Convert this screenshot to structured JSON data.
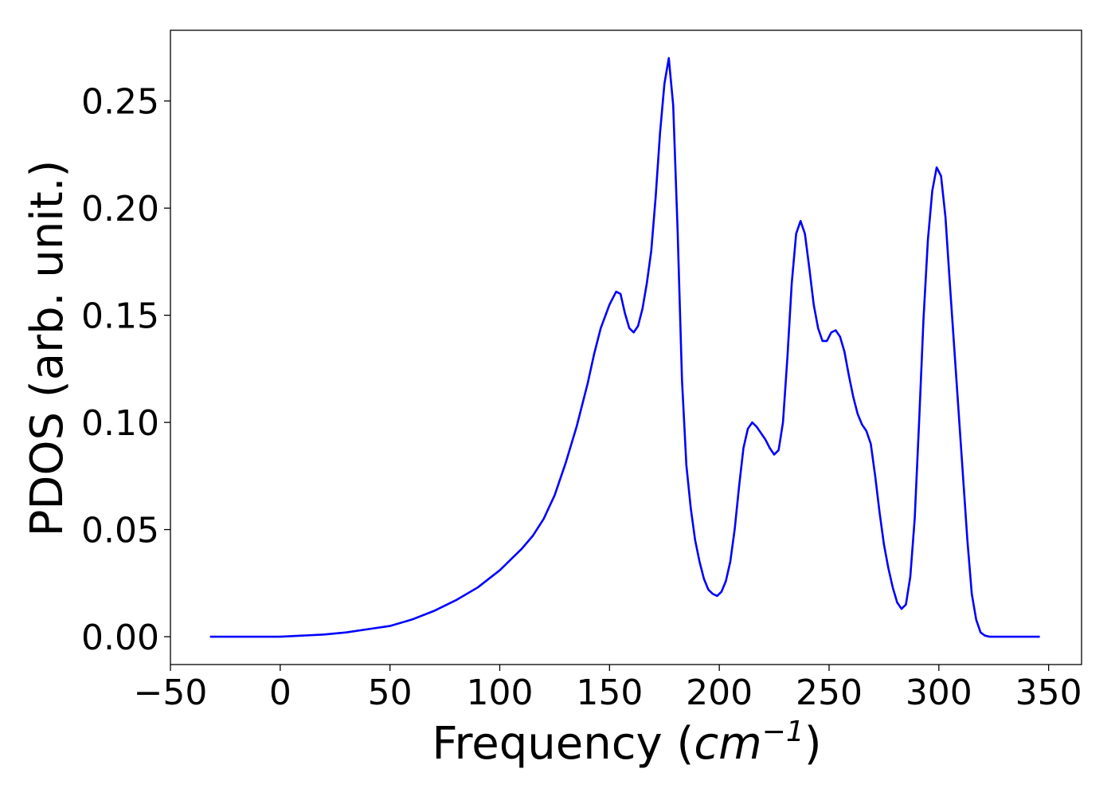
{
  "chart_data": {
    "type": "line",
    "title": "",
    "xlabel": {
      "text": "Frequency (",
      "math_base": "cm",
      "math_exp": "−1",
      "close": ")"
    },
    "ylabel": "PDOS (arb. unit.)",
    "xlim": [
      -50,
      365
    ],
    "ylim": [
      -0.013,
      0.283
    ],
    "xticks": [
      -50,
      0,
      50,
      100,
      150,
      200,
      250,
      300,
      350
    ],
    "xtick_labels": [
      "−50",
      "0",
      "50",
      "100",
      "150",
      "200",
      "250",
      "300",
      "350"
    ],
    "yticks": [
      0.0,
      0.05,
      0.1,
      0.15,
      0.2,
      0.25
    ],
    "ytick_labels": [
      "0.00",
      "0.05",
      "0.10",
      "0.15",
      "0.20",
      "0.25"
    ],
    "grid": false,
    "legend": "none",
    "series": [
      {
        "color": "#0000ff",
        "x": [
          -32,
          0,
          10,
          20,
          30,
          40,
          50,
          60,
          70,
          80,
          90,
          100,
          105,
          110,
          115,
          120,
          125,
          130,
          135,
          140,
          143,
          146,
          150,
          153,
          155,
          157,
          159,
          161,
          163,
          165,
          167,
          169,
          171,
          173,
          175,
          177,
          179,
          181,
          183,
          185,
          187,
          189,
          191,
          193,
          195,
          197,
          199,
          201,
          203,
          205,
          207,
          209,
          211,
          213,
          215,
          217,
          219,
          221,
          223,
          225,
          227,
          229,
          231,
          233,
          235,
          237,
          239,
          241,
          243,
          245,
          247,
          249,
          251,
          253,
          255,
          257,
          259,
          261,
          263,
          265,
          267,
          269,
          271,
          273,
          275,
          277,
          279,
          281,
          283,
          285,
          287,
          289,
          291,
          293,
          295,
          297,
          299,
          301,
          303,
          305,
          307,
          309,
          311,
          313,
          315,
          317,
          319,
          321,
          323,
          325,
          346
        ],
        "y": [
          0.0,
          0.0,
          0.0005,
          0.001,
          0.002,
          0.0035,
          0.005,
          0.008,
          0.012,
          0.017,
          0.023,
          0.031,
          0.036,
          0.041,
          0.047,
          0.055,
          0.066,
          0.081,
          0.098,
          0.118,
          0.132,
          0.144,
          0.155,
          0.161,
          0.16,
          0.151,
          0.144,
          0.142,
          0.145,
          0.153,
          0.165,
          0.18,
          0.205,
          0.235,
          0.258,
          0.27,
          0.248,
          0.19,
          0.12,
          0.08,
          0.06,
          0.045,
          0.035,
          0.027,
          0.022,
          0.02,
          0.019,
          0.021,
          0.026,
          0.035,
          0.05,
          0.07,
          0.088,
          0.097,
          0.1,
          0.098,
          0.095,
          0.092,
          0.088,
          0.085,
          0.087,
          0.1,
          0.13,
          0.165,
          0.188,
          0.194,
          0.188,
          0.172,
          0.155,
          0.144,
          0.138,
          0.138,
          0.142,
          0.143,
          0.14,
          0.133,
          0.122,
          0.112,
          0.104,
          0.099,
          0.096,
          0.09,
          0.075,
          0.058,
          0.043,
          0.032,
          0.023,
          0.016,
          0.013,
          0.015,
          0.028,
          0.055,
          0.1,
          0.148,
          0.185,
          0.208,
          0.219,
          0.215,
          0.196,
          0.165,
          0.135,
          0.105,
          0.075,
          0.045,
          0.02,
          0.008,
          0.002,
          0.0005,
          0.0,
          0.0,
          0.0
        ]
      }
    ]
  }
}
